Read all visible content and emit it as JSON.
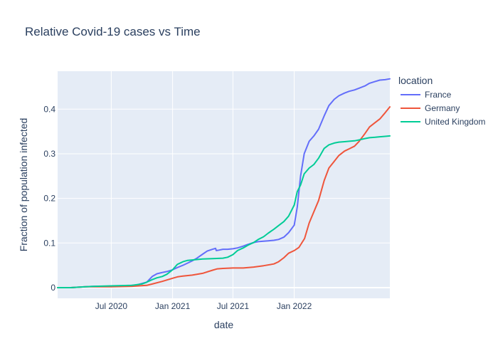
{
  "chart_data": {
    "type": "line",
    "title": "Relative Covid-19 cases vs Time",
    "xlabel": "date",
    "ylabel": "Fraction of population infected",
    "xlim": [
      "2020-01-22",
      "2022-10-15"
    ],
    "ylim": [
      -0.024,
      0.485
    ],
    "grid": true,
    "legend": {
      "title": "location",
      "placement": "right"
    },
    "x_ticks": [
      {
        "date": "2020-07-01",
        "label": "Jul 2020"
      },
      {
        "date": "2021-01-01",
        "label": "Jan 2021"
      },
      {
        "date": "2021-07-01",
        "label": "Jul 2021"
      },
      {
        "date": "2022-01-01",
        "label": "Jan 2022"
      }
    ],
    "y_ticks": [
      {
        "value": 0,
        "label": "0"
      },
      {
        "value": 0.1,
        "label": "0.1"
      },
      {
        "value": 0.2,
        "label": "0.2"
      },
      {
        "value": 0.3,
        "label": "0.3"
      },
      {
        "value": 0.4,
        "label": "0.4"
      }
    ],
    "series": [
      {
        "name": "France",
        "color": "#636efa",
        "points": [
          [
            "2020-01-22",
            0
          ],
          [
            "2020-03-01",
            0
          ],
          [
            "2020-04-15",
            0.002
          ],
          [
            "2020-05-15",
            0.003
          ],
          [
            "2020-07-01",
            0.003
          ],
          [
            "2020-08-15",
            0.004
          ],
          [
            "2020-09-15",
            0.006
          ],
          [
            "2020-10-15",
            0.012
          ],
          [
            "2020-11-01",
            0.025
          ],
          [
            "2020-11-15",
            0.031
          ],
          [
            "2020-12-01",
            0.034
          ],
          [
            "2020-12-15",
            0.036
          ],
          [
            "2021-01-01",
            0.04
          ],
          [
            "2021-01-15",
            0.045
          ],
          [
            "2021-02-01",
            0.05
          ],
          [
            "2021-02-15",
            0.055
          ],
          [
            "2021-03-01",
            0.06
          ],
          [
            "2021-03-15",
            0.066
          ],
          [
            "2021-04-01",
            0.075
          ],
          [
            "2021-04-15",
            0.082
          ],
          [
            "2021-05-01",
            0.086
          ],
          [
            "2021-05-10",
            0.088
          ],
          [
            "2021-05-12",
            0.083
          ],
          [
            "2021-05-20",
            0.084
          ],
          [
            "2021-06-01",
            0.086
          ],
          [
            "2021-06-15",
            0.086
          ],
          [
            "2021-07-01",
            0.087
          ],
          [
            "2021-07-15",
            0.089
          ],
          [
            "2021-08-01",
            0.093
          ],
          [
            "2021-08-15",
            0.097
          ],
          [
            "2021-09-01",
            0.101
          ],
          [
            "2021-09-15",
            0.103
          ],
          [
            "2021-10-01",
            0.104
          ],
          [
            "2021-10-15",
            0.105
          ],
          [
            "2021-11-01",
            0.106
          ],
          [
            "2021-11-15",
            0.108
          ],
          [
            "2021-12-01",
            0.113
          ],
          [
            "2021-12-15",
            0.123
          ],
          [
            "2022-01-01",
            0.14
          ],
          [
            "2022-01-10",
            0.18
          ],
          [
            "2022-01-20",
            0.25
          ],
          [
            "2022-01-31",
            0.3
          ],
          [
            "2022-02-15",
            0.328
          ],
          [
            "2022-03-01",
            0.34
          ],
          [
            "2022-03-15",
            0.355
          ],
          [
            "2022-04-01",
            0.385
          ],
          [
            "2022-04-15",
            0.408
          ],
          [
            "2022-05-01",
            0.422
          ],
          [
            "2022-05-15",
            0.43
          ],
          [
            "2022-06-01",
            0.436
          ],
          [
            "2022-06-15",
            0.44
          ],
          [
            "2022-07-01",
            0.443
          ],
          [
            "2022-07-15",
            0.447
          ],
          [
            "2022-08-01",
            0.452
          ],
          [
            "2022-08-15",
            0.458
          ],
          [
            "2022-09-01",
            0.462
          ],
          [
            "2022-09-15",
            0.465
          ],
          [
            "2022-10-01",
            0.466
          ],
          [
            "2022-10-15",
            0.468
          ]
        ]
      },
      {
        "name": "Germany",
        "color": "#ef553b",
        "points": [
          [
            "2020-01-22",
            0
          ],
          [
            "2020-03-01",
            0
          ],
          [
            "2020-04-15",
            0.002
          ],
          [
            "2020-07-01",
            0.002
          ],
          [
            "2020-09-01",
            0.003
          ],
          [
            "2020-10-15",
            0.005
          ],
          [
            "2020-11-01",
            0.008
          ],
          [
            "2020-12-01",
            0.014
          ],
          [
            "2021-01-01",
            0.021
          ],
          [
            "2021-01-15",
            0.024
          ],
          [
            "2021-02-01",
            0.026
          ],
          [
            "2021-03-01",
            0.028
          ],
          [
            "2021-04-01",
            0.032
          ],
          [
            "2021-05-01",
            0.039
          ],
          [
            "2021-05-15",
            0.042
          ],
          [
            "2021-06-01",
            0.043
          ],
          [
            "2021-07-01",
            0.044
          ],
          [
            "2021-08-01",
            0.044
          ],
          [
            "2021-09-01",
            0.046
          ],
          [
            "2021-10-01",
            0.049
          ],
          [
            "2021-11-01",
            0.053
          ],
          [
            "2021-11-15",
            0.058
          ],
          [
            "2021-12-01",
            0.067
          ],
          [
            "2021-12-15",
            0.077
          ],
          [
            "2022-01-01",
            0.083
          ],
          [
            "2022-01-15",
            0.09
          ],
          [
            "2022-02-01",
            0.11
          ],
          [
            "2022-02-15",
            0.145
          ],
          [
            "2022-03-01",
            0.17
          ],
          [
            "2022-03-15",
            0.195
          ],
          [
            "2022-04-01",
            0.24
          ],
          [
            "2022-04-15",
            0.268
          ],
          [
            "2022-05-01",
            0.283
          ],
          [
            "2022-05-15",
            0.296
          ],
          [
            "2022-06-01",
            0.306
          ],
          [
            "2022-06-15",
            0.311
          ],
          [
            "2022-07-01",
            0.317
          ],
          [
            "2022-07-15",
            0.328
          ],
          [
            "2022-08-01",
            0.345
          ],
          [
            "2022-08-15",
            0.36
          ],
          [
            "2022-09-01",
            0.37
          ],
          [
            "2022-09-15",
            0.378
          ],
          [
            "2022-10-01",
            0.392
          ],
          [
            "2022-10-15",
            0.405
          ]
        ]
      },
      {
        "name": "United Kingdom",
        "color": "#00cc96",
        "points": [
          [
            "2020-01-22",
            0
          ],
          [
            "2020-03-01",
            0
          ],
          [
            "2020-04-15",
            0.002
          ],
          [
            "2020-05-15",
            0.003
          ],
          [
            "2020-07-01",
            0.004
          ],
          [
            "2020-09-01",
            0.005
          ],
          [
            "2020-10-01",
            0.008
          ],
          [
            "2020-10-15",
            0.012
          ],
          [
            "2020-11-01",
            0.018
          ],
          [
            "2020-11-15",
            0.022
          ],
          [
            "2020-12-01",
            0.025
          ],
          [
            "2020-12-15",
            0.03
          ],
          [
            "2021-01-01",
            0.04
          ],
          [
            "2021-01-15",
            0.052
          ],
          [
            "2021-02-01",
            0.058
          ],
          [
            "2021-02-15",
            0.061
          ],
          [
            "2021-03-01",
            0.062
          ],
          [
            "2021-04-01",
            0.064
          ],
          [
            "2021-05-01",
            0.065
          ],
          [
            "2021-06-01",
            0.066
          ],
          [
            "2021-06-15",
            0.068
          ],
          [
            "2021-07-01",
            0.074
          ],
          [
            "2021-07-15",
            0.083
          ],
          [
            "2021-08-01",
            0.089
          ],
          [
            "2021-08-15",
            0.095
          ],
          [
            "2021-09-01",
            0.101
          ],
          [
            "2021-09-15",
            0.108
          ],
          [
            "2021-10-01",
            0.114
          ],
          [
            "2021-10-15",
            0.122
          ],
          [
            "2021-11-01",
            0.131
          ],
          [
            "2021-11-15",
            0.139
          ],
          [
            "2021-12-01",
            0.148
          ],
          [
            "2021-12-15",
            0.16
          ],
          [
            "2022-01-01",
            0.185
          ],
          [
            "2022-01-10",
            0.215
          ],
          [
            "2022-01-20",
            0.23
          ],
          [
            "2022-01-31",
            0.255
          ],
          [
            "2022-02-15",
            0.268
          ],
          [
            "2022-03-01",
            0.276
          ],
          [
            "2022-03-15",
            0.29
          ],
          [
            "2022-04-01",
            0.312
          ],
          [
            "2022-04-15",
            0.32
          ],
          [
            "2022-05-01",
            0.324
          ],
          [
            "2022-05-15",
            0.326
          ],
          [
            "2022-06-01",
            0.327
          ],
          [
            "2022-06-15",
            0.328
          ],
          [
            "2022-07-01",
            0.329
          ],
          [
            "2022-07-15",
            0.331
          ],
          [
            "2022-08-01",
            0.334
          ],
          [
            "2022-08-15",
            0.336
          ],
          [
            "2022-09-01",
            0.337
          ],
          [
            "2022-09-15",
            0.338
          ],
          [
            "2022-10-01",
            0.339
          ],
          [
            "2022-10-15",
            0.34
          ]
        ]
      }
    ]
  }
}
